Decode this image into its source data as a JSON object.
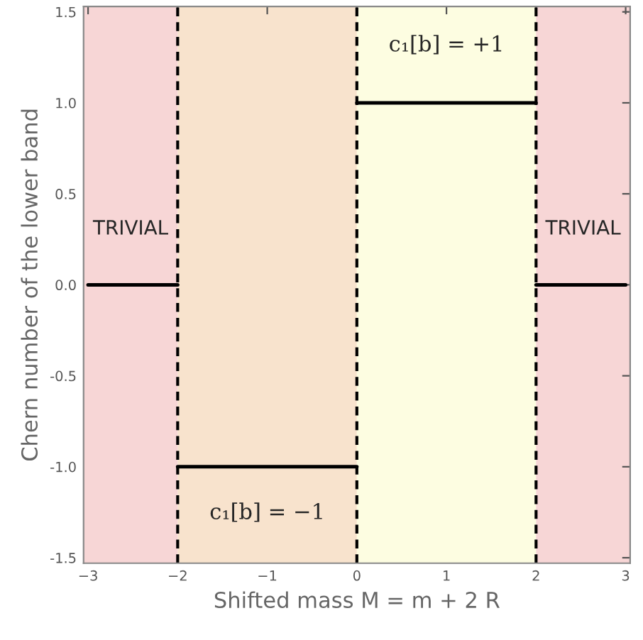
{
  "chart_data": {
    "type": "line",
    "xlabel": "Shifted mass M = m + 2 R",
    "ylabel": "Chern number of the lower band",
    "series": [
      {
        "color": "#000000",
        "x": [
          -3,
          -2
        ],
        "values": [
          0,
          0
        ]
      },
      {
        "color": "#000000",
        "x": [
          -2,
          0
        ],
        "values": [
          -1,
          -1
        ]
      },
      {
        "color": "#000000",
        "x": [
          0,
          2
        ],
        "values": [
          1,
          1
        ]
      },
      {
        "color": "#000000",
        "x": [
          2,
          3
        ],
        "values": [
          0,
          0
        ]
      }
    ],
    "xlim": [
      -3.05,
      3.05
    ],
    "ylim": [
      -1.53,
      1.53
    ],
    "xticks": [
      {
        "value": -3,
        "label": "−3"
      },
      {
        "value": -2,
        "label": "−2"
      },
      {
        "value": -1,
        "label": "−1"
      },
      {
        "value": 0,
        "label": "0"
      },
      {
        "value": 1,
        "label": "1"
      },
      {
        "value": 2,
        "label": "2"
      },
      {
        "value": 3,
        "label": "3"
      }
    ],
    "yticks": [
      {
        "value": -1.5,
        "label": "-1.5"
      },
      {
        "value": -1.0,
        "label": "-1.0"
      },
      {
        "value": -0.5,
        "label": "-0.5"
      },
      {
        "value": 0.0,
        "label": "0.0"
      },
      {
        "value": 0.5,
        "label": "0.5"
      },
      {
        "value": 1.0,
        "label": "1.0"
      },
      {
        "value": 1.5,
        "label": "1.5"
      }
    ],
    "bands": [
      {
        "axis": "x",
        "from": -3.05,
        "to": -2,
        "color": "#f7d6d6",
        "label": "TRIVIAL"
      },
      {
        "axis": "x",
        "from": -2,
        "to": 0,
        "color": "#f8e3cd",
        "label": "c₁[b] = −1"
      },
      {
        "axis": "x",
        "from": 0,
        "to": 2,
        "color": "#fdfde1",
        "label": "c₁[b] = +1"
      },
      {
        "axis": "x",
        "from": 2,
        "to": 3.05,
        "color": "#f7d6d6",
        "label": "TRIVIAL"
      }
    ],
    "ref_lines": [
      {
        "axis": "x",
        "value": -2,
        "color": "#000000",
        "line_style": "dashed"
      },
      {
        "axis": "x",
        "value": 0,
        "color": "#000000",
        "line_style": "dashed"
      },
      {
        "axis": "x",
        "value": 2,
        "color": "#000000",
        "line_style": "dashed"
      }
    ],
    "grid": false,
    "line_style": "solid",
    "marker": "none"
  }
}
